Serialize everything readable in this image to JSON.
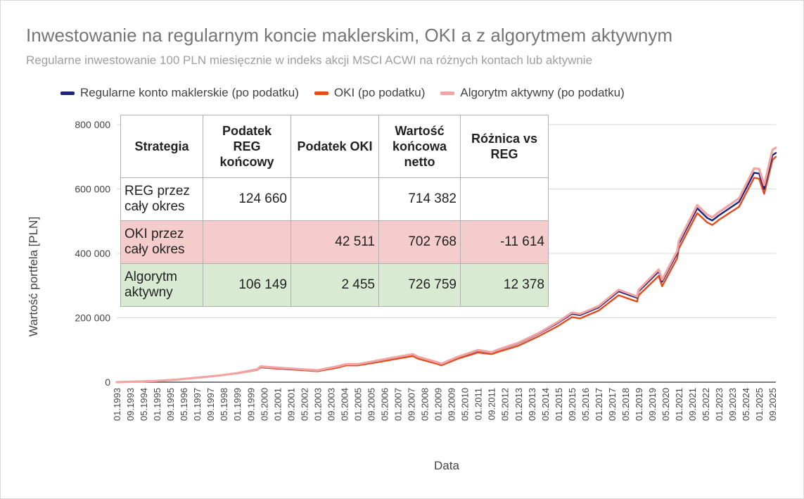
{
  "chart_data": {
    "type": "line",
    "title": "Inwestowanie na regularnym koncie maklerskim, OKI a z algorytmem aktywnym",
    "subtitle": "Regularne inwestowanie 100 PLN miesięcznie w indeks akcji MSCI ACWI na różnych kontach lub aktywnie",
    "xlabel": "Data",
    "ylabel": "Wartość portfela [PLN]",
    "ylim": [
      0,
      800000
    ],
    "yticks": [
      "0",
      "200 000",
      "400 000",
      "600 000",
      "800 000"
    ],
    "ytick_values": [
      0,
      200000,
      400000,
      600000,
      800000
    ],
    "x_tick_labels": [
      "01.1993",
      "09.1993",
      "05.1994",
      "01.1995",
      "09.1995",
      "05.1996",
      "01.1997",
      "09.1997",
      "05.1998",
      "01.1999",
      "09.1999",
      "05.2000",
      "01.2001",
      "09.2001",
      "05.2002",
      "01.2003",
      "09.2003",
      "05.2004",
      "01.2005",
      "09.2005",
      "05.2006",
      "01.2007",
      "09.2007",
      "05.2008",
      "01.2009",
      "09.2009",
      "05.2010",
      "01.2011",
      "09.2011",
      "05.2012",
      "01.2013",
      "09.2013",
      "05.2014",
      "01.2015",
      "09.2015",
      "05.2016",
      "01.2017",
      "09.2017",
      "05.2018",
      "01.2019",
      "09.2019",
      "05.2020",
      "01.2021",
      "09.2021",
      "05.2022",
      "01.2023",
      "09.2023",
      "05.2024",
      "01.2025",
      "09.2025"
    ],
    "x": [
      "01.1993",
      "01.1994",
      "01.1995",
      "01.1996",
      "01.1997",
      "01.1998",
      "01.1999",
      "01.2000",
      "03.2000",
      "01.2001",
      "01.2002",
      "01.2003",
      "01.2004",
      "06.2004",
      "01.2005",
      "01.2006",
      "01.2007",
      "10.2007",
      "01.2008",
      "01.2009",
      "03.2009",
      "01.2010",
      "01.2011",
      "09.2011",
      "01.2012",
      "01.2013",
      "01.2014",
      "01.2015",
      "09.2015",
      "02.2016",
      "01.2017",
      "01.2018",
      "12.2018",
      "01.2019",
      "01.2020",
      "03.2020",
      "12.2020",
      "01.2021",
      "12.2021",
      "06.2022",
      "09.2022",
      "01.2023",
      "01.2024",
      "10.2024",
      "01.2025",
      "04.2025",
      "09.2025",
      "11.2025"
    ],
    "grid": true,
    "legend": "top",
    "series": [
      {
        "name": "Regularne konto maklerskie (po podatku)",
        "color": "#1a237e",
        "values": [
          0,
          2000,
          4000,
          8000,
          14000,
          20000,
          28000,
          40000,
          48000,
          44000,
          40000,
          36000,
          48000,
          55000,
          55000,
          66000,
          78000,
          86000,
          78000,
          60000,
          56000,
          78000,
          98000,
          92000,
          100000,
          120000,
          150000,
          185000,
          212000,
          208000,
          232000,
          282000,
          262000,
          282000,
          344000,
          312000,
          400000,
          430000,
          540000,
          510000,
          502000,
          518000,
          560000,
          650000,
          648000,
          600000,
          705000,
          712000
        ]
      },
      {
        "name": "OKI (po podatku)",
        "color": "#e64a19",
        "values": [
          0,
          2000,
          4000,
          8000,
          14000,
          20000,
          27000,
          38000,
          46000,
          42000,
          38000,
          34000,
          45000,
          52000,
          52000,
          62000,
          73000,
          81000,
          73000,
          56000,
          52000,
          73000,
          92000,
          87000,
          94000,
          113000,
          142000,
          175000,
          202000,
          198000,
          222000,
          270000,
          250000,
          270000,
          330000,
          298000,
          385000,
          415000,
          525000,
          496000,
          488000,
          504000,
          545000,
          635000,
          632000,
          585000,
          690000,
          700000
        ]
      },
      {
        "name": "Algorytm aktywny (po podatku)",
        "color": "#f4a3a3",
        "values": [
          0,
          2000,
          4000,
          8000,
          14000,
          20000,
          28000,
          40000,
          49000,
          45000,
          41000,
          37000,
          49000,
          56000,
          56000,
          67000,
          79000,
          87000,
          79000,
          61000,
          57000,
          79000,
          100000,
          93000,
          101000,
          122000,
          152000,
          188000,
          216000,
          212000,
          236000,
          287000,
          266000,
          287000,
          350000,
          318000,
          407000,
          438000,
          550000,
          520000,
          512000,
          528000,
          571000,
          664000,
          662000,
          612000,
          722000,
          728000
        ]
      }
    ]
  },
  "table": {
    "headers": [
      "Strategia",
      "Podatek REG końcowy",
      "Podatek OKI",
      "Wartość końcowa netto",
      "Różnica vs REG"
    ],
    "rows": [
      [
        "REG przez cały okres",
        "124 660",
        "",
        "714 382",
        ""
      ],
      [
        "OKI przez cały okres",
        "",
        "42 511",
        "702 768",
        "-11 614"
      ],
      [
        "Algorytm aktywny",
        "106 149",
        "2 455",
        "726 759",
        "12 378"
      ]
    ]
  }
}
